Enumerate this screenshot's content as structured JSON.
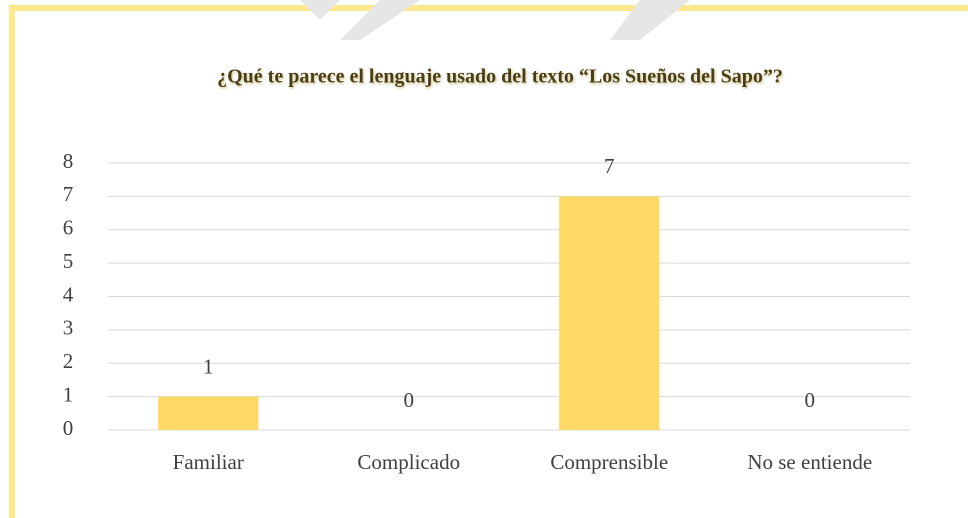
{
  "chart_data": {
    "type": "bar",
    "title": "¿Qué te parece el lenguaje usado del texto “Los Sueños del Sapo”?",
    "categories": [
      "Familiar",
      "Complicado",
      "Comprensible",
      "No se entiende"
    ],
    "values": [
      1,
      0,
      7,
      0
    ],
    "color": "#ffd966",
    "ylim": [
      0,
      8
    ],
    "yticks": [
      0,
      1,
      2,
      3,
      4,
      5,
      6,
      7,
      8
    ],
    "grid": true
  }
}
